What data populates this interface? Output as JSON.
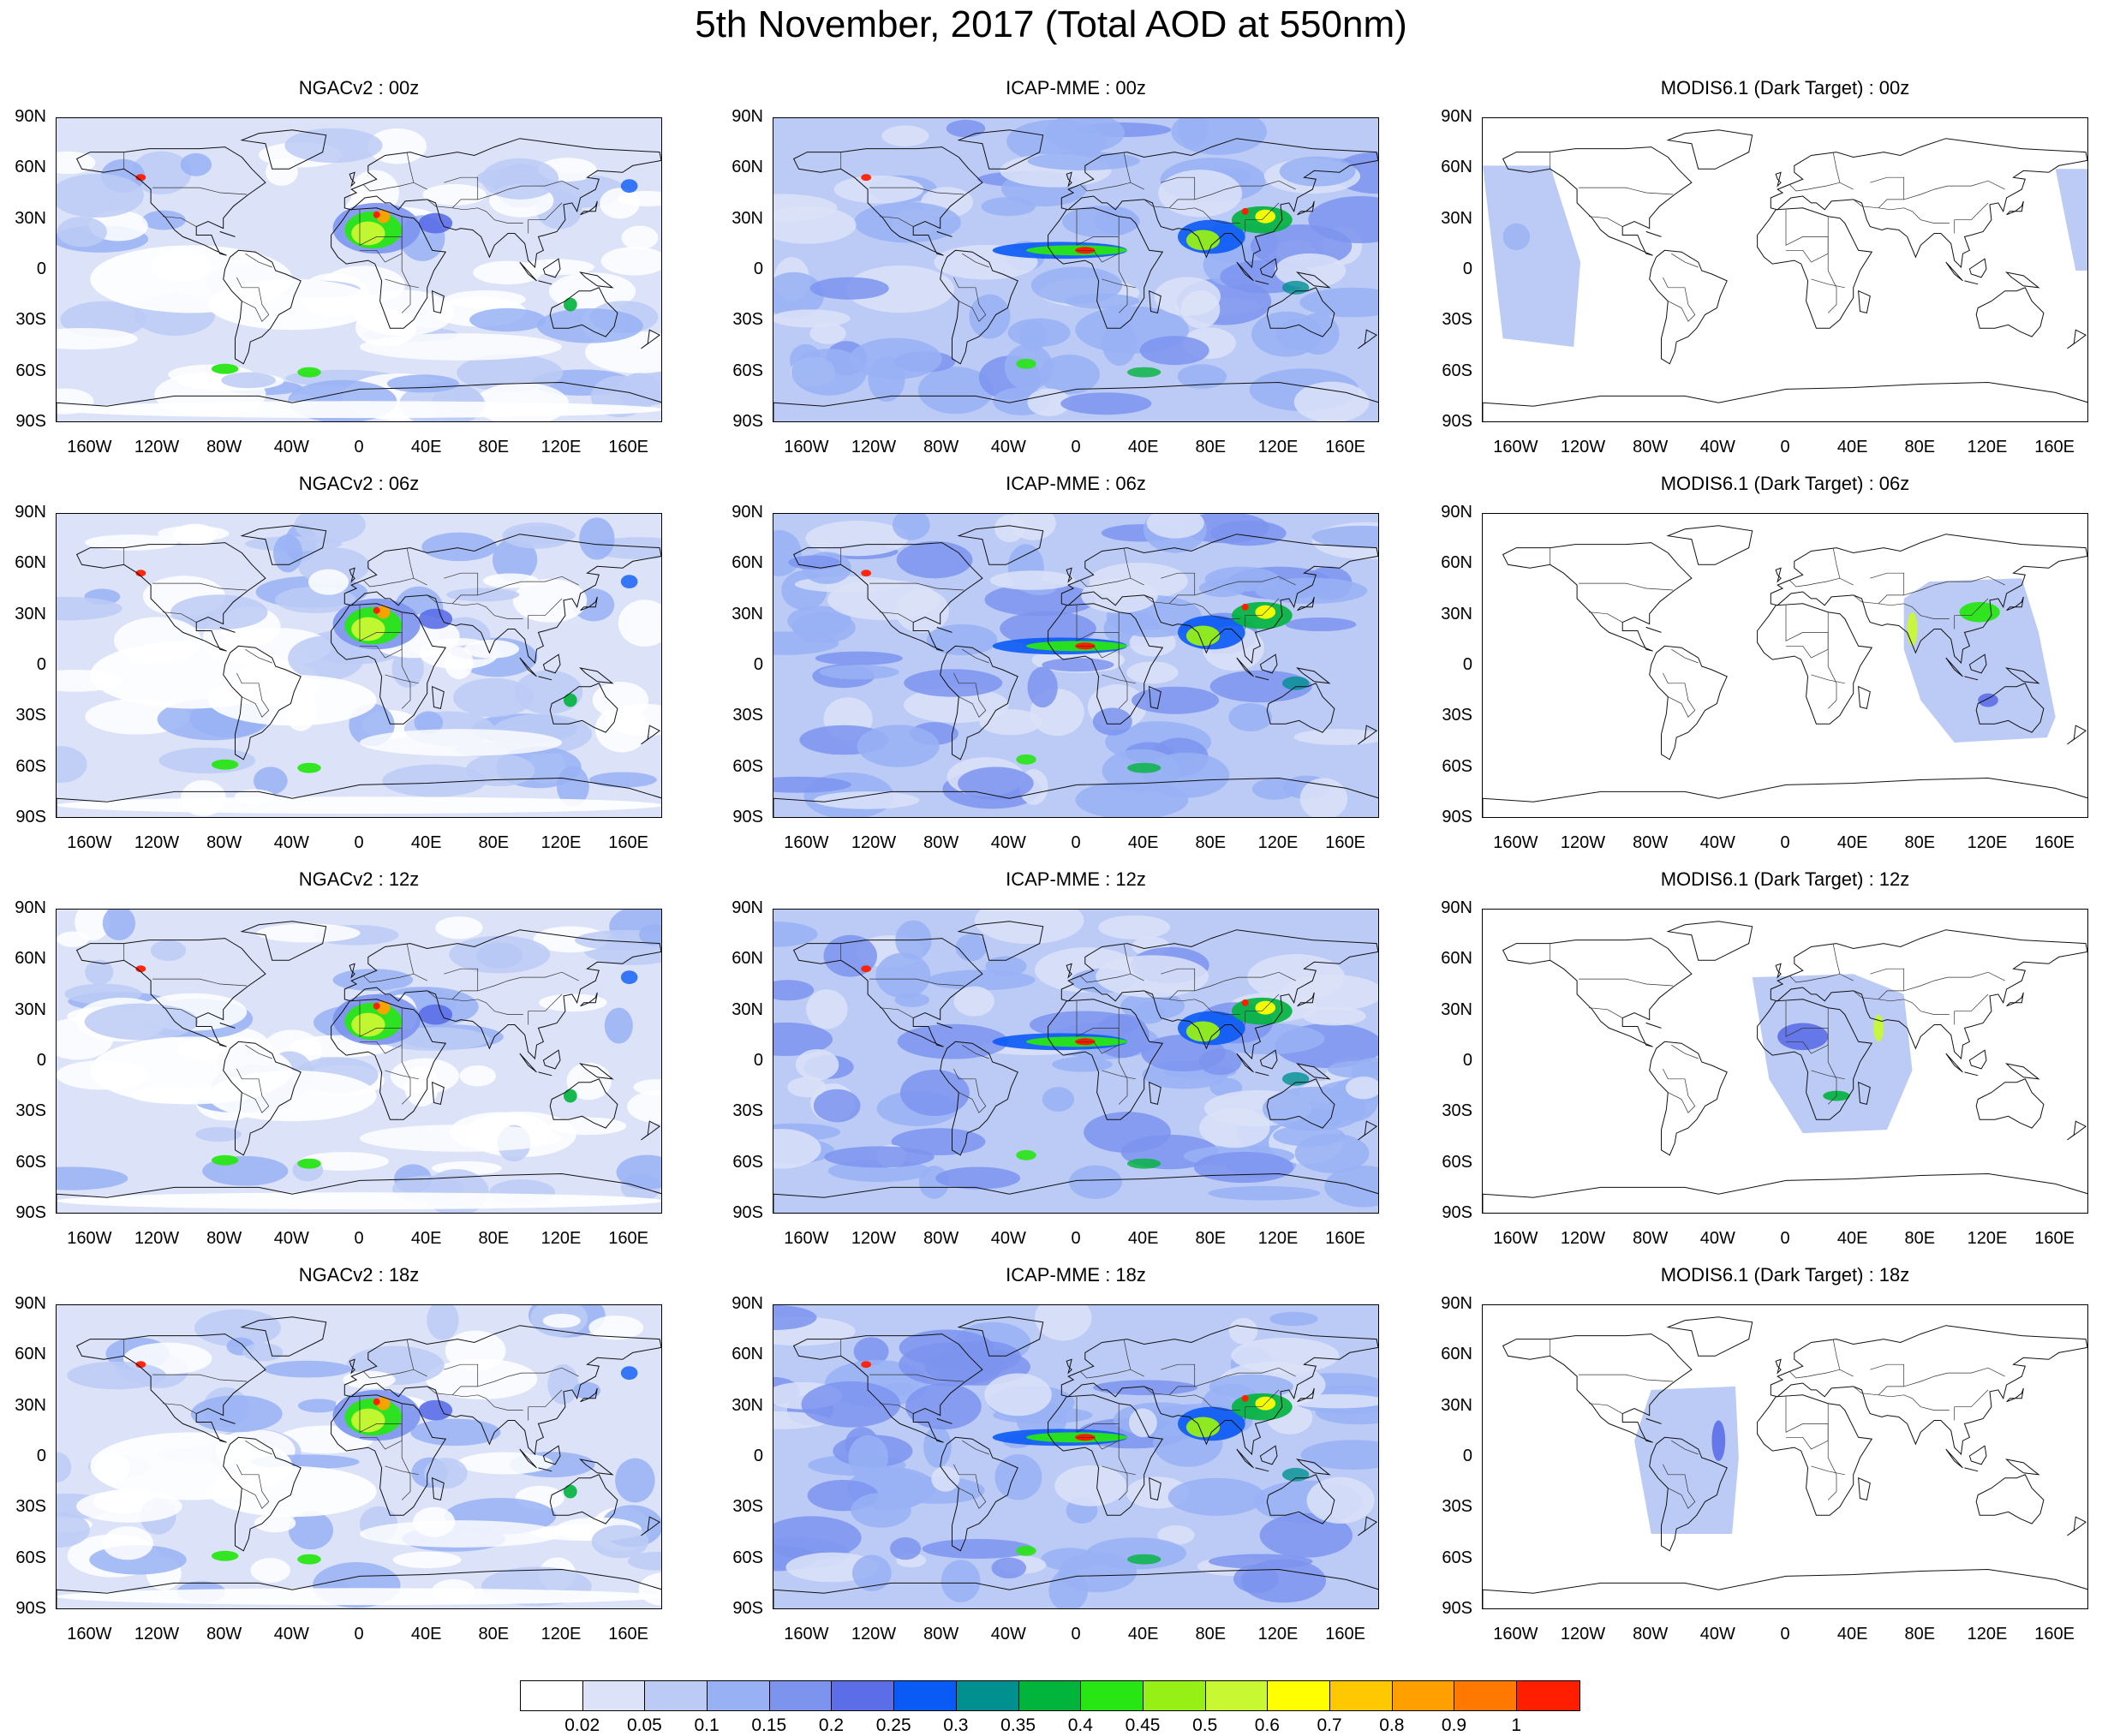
{
  "title": "5th November, 2017 (Total AOD at 550nm)",
  "panels": [
    {
      "model": "NGACv2",
      "time": "00z",
      "title": "NGACv2 : 00z"
    },
    {
      "model": "ICAP-MME",
      "time": "00z",
      "title": "ICAP-MME : 00z"
    },
    {
      "model": "MODIS6.1 (Dark Target)",
      "time": "00z",
      "title": "MODIS6.1 (Dark Target) : 00z"
    },
    {
      "model": "NGACv2",
      "time": "06z",
      "title": "NGACv2 : 06z"
    },
    {
      "model": "ICAP-MME",
      "time": "06z",
      "title": "ICAP-MME : 06z"
    },
    {
      "model": "MODIS6.1 (Dark Target)",
      "time": "06z",
      "title": "MODIS6.1 (Dark Target) : 06z"
    },
    {
      "model": "NGACv2",
      "time": "12z",
      "title": "NGACv2 : 12z"
    },
    {
      "model": "ICAP-MME",
      "time": "12z",
      "title": "ICAP-MME : 12z"
    },
    {
      "model": "MODIS6.1 (Dark Target)",
      "time": "12z",
      "title": "MODIS6.1 (Dark Target) : 12z"
    },
    {
      "model": "NGACv2",
      "time": "18z",
      "title": "NGACv2 : 18z"
    },
    {
      "model": "ICAP-MME",
      "time": "18z",
      "title": "ICAP-MME : 18z"
    },
    {
      "model": "MODIS6.1 (Dark Target)",
      "time": "18z",
      "title": "MODIS6.1 (Dark Target) : 18z"
    }
  ],
  "axes": {
    "lat_ticks": [
      "90N",
      "60N",
      "30N",
      "0",
      "30S",
      "60S",
      "90S"
    ],
    "lon_ticks": [
      "160W",
      "120W",
      "80W",
      "40W",
      "0",
      "40E",
      "80E",
      "120E",
      "160E"
    ],
    "lon_range": [
      -180,
      180
    ],
    "lat_range": [
      -90,
      90
    ]
  },
  "colorbar": {
    "labels": [
      "0.02",
      "0.05",
      "0.1",
      "0.15",
      "0.2",
      "0.25",
      "0.3",
      "0.35",
      "0.4",
      "0.45",
      "0.5",
      "0.6",
      "0.7",
      "0.8",
      "0.9",
      "1"
    ],
    "colors": [
      "#ffffff",
      "#dce3f8",
      "#bccbf6",
      "#98b1f4",
      "#7c94ee",
      "#5b6ee8",
      "#0a5af5",
      "#009090",
      "#00b43c",
      "#28e614",
      "#96f016",
      "#c8f832",
      "#ffff00",
      "#ffc800",
      "#ffa000",
      "#ff7800",
      "#ff1e00"
    ]
  }
}
